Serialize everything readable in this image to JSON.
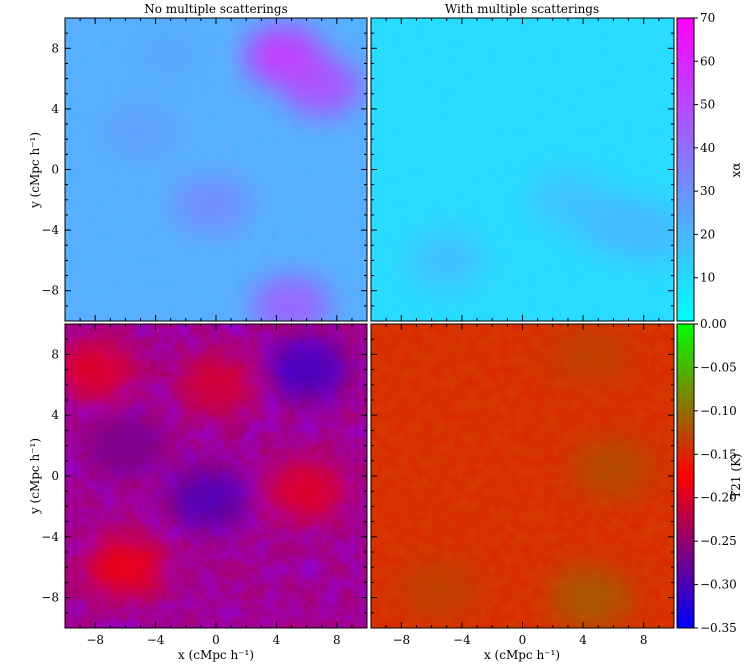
{
  "panel_titles": [
    "No multiple scatterings",
    "With multiple scatterings"
  ],
  "axis_labels": {
    "x": "x (cMpc h⁻¹)",
    "y": "y (cMpc h⁻¹)"
  },
  "chart_data": [
    {
      "type": "heatmap",
      "title": "No multiple scatterings",
      "quantity": "x_alpha",
      "xlabel": "",
      "ylabel": "y (cMpc h⁻¹)",
      "xlim": [
        -10,
        10
      ],
      "ylim": [
        -10,
        10
      ],
      "xticks": [
        -8,
        -4,
        0,
        4,
        8
      ],
      "yticks": [
        -8,
        -4,
        0,
        4,
        8
      ],
      "vmin": 0,
      "vmax": 70,
      "colormap": [
        "#00ffff",
        "#ff00ff"
      ],
      "features": [
        {
          "x": 4.5,
          "y": 7.5,
          "value": 58
        },
        {
          "x": 7.0,
          "y": 5.5,
          "value": 50
        },
        {
          "x": 5.0,
          "y": -9.0,
          "value": 45
        },
        {
          "x": -0.3,
          "y": -2.3,
          "value": 32
        },
        {
          "x": -5.0,
          "y": 2.5,
          "value": 26
        },
        {
          "x": -3.0,
          "y": 7.5,
          "value": 24
        }
      ],
      "background_value": 22
    },
    {
      "type": "heatmap",
      "title": "With multiple scatterings",
      "quantity": "x_alpha",
      "xlabel": "",
      "ylabel": "",
      "xlim": [
        -10,
        10
      ],
      "ylim": [
        -10,
        10
      ],
      "xticks": [
        -8,
        -4,
        0,
        4,
        8
      ],
      "yticks": [
        -8,
        -4,
        0,
        4,
        8
      ],
      "vmin": 0,
      "vmax": 70,
      "colormap": [
        "#00ffff",
        "#ff00ff"
      ],
      "features": [
        {
          "x": 6.0,
          "y": -3.5,
          "value": 20
        },
        {
          "x": 8.5,
          "y": -4.2,
          "value": 20
        },
        {
          "x": -5.0,
          "y": -6.0,
          "value": 18
        },
        {
          "x": 3.0,
          "y": -2.0,
          "value": 17
        }
      ],
      "background_value": 10
    },
    {
      "type": "heatmap",
      "title": "",
      "quantity": "T_21",
      "xlabel": "x (cMpc h⁻¹)",
      "ylabel": "y (cMpc h⁻¹)",
      "xlim": [
        -10,
        10
      ],
      "ylim": [
        -10,
        10
      ],
      "xticks": [
        -8,
        -4,
        0,
        4,
        8
      ],
      "yticks": [
        -8,
        -4,
        0,
        4,
        8
      ],
      "vmin": -0.35,
      "vmax": 0.0,
      "colormap": [
        "#0000ff",
        "#ff0000",
        "#00ff00"
      ],
      "features": [
        {
          "x": -6.0,
          "y": -6.0,
          "value": -0.18
        },
        {
          "x": 6.0,
          "y": -1.0,
          "value": -0.19
        },
        {
          "x": -8.0,
          "y": 7.0,
          "value": -0.19
        },
        {
          "x": 0.0,
          "y": 6.0,
          "value": -0.2
        },
        {
          "x": 6.0,
          "y": 7.0,
          "value": -0.31
        },
        {
          "x": -0.5,
          "y": -1.5,
          "value": -0.3
        },
        {
          "x": -6.0,
          "y": 2.0,
          "value": -0.27
        }
      ],
      "background_value": -0.24
    },
    {
      "type": "heatmap",
      "title": "",
      "quantity": "T_21",
      "xlabel": "x (cMpc h⁻¹)",
      "ylabel": "",
      "xlim": [
        -10,
        10
      ],
      "ylim": [
        -10,
        10
      ],
      "xticks": [
        -8,
        -4,
        0,
        4,
        8
      ],
      "yticks": [
        -8,
        -4,
        0,
        4,
        8
      ],
      "vmin": -0.35,
      "vmax": 0.0,
      "colormap": [
        "#0000ff",
        "#ff0000",
        "#00ff00"
      ],
      "features": [
        {
          "x": 4.5,
          "y": -8.0,
          "value": -0.11
        },
        {
          "x": 6.0,
          "y": 0.5,
          "value": -0.12
        },
        {
          "x": 4.5,
          "y": 8.0,
          "value": -0.13
        },
        {
          "x": -5.5,
          "y": -7.5,
          "value": -0.13
        }
      ],
      "background_value": -0.15
    }
  ],
  "colorbars": [
    {
      "label": "xα",
      "ticks": [
        "10",
        "20",
        "30",
        "40",
        "50",
        "60",
        "70"
      ],
      "tick_values": [
        10,
        20,
        30,
        40,
        50,
        60,
        70
      ],
      "vmin": 0,
      "vmax": 70,
      "colors": [
        "#00ffff",
        "#ff00ff"
      ]
    },
    {
      "label": "T21 (K)",
      "ticks": [
        "0.00",
        "−0.05",
        "−0.10",
        "−0.15",
        "−0.20",
        "−0.25",
        "−0.30",
        "−0.35"
      ],
      "tick_values": [
        0.0,
        -0.05,
        -0.1,
        -0.15,
        -0.2,
        -0.25,
        -0.3,
        -0.35
      ],
      "vmin": -0.35,
      "vmax": 0.0,
      "colors": [
        "#0000ff",
        "#ff0000",
        "#00ff00"
      ]
    }
  ],
  "tick_labels": [
    "−8",
    "−4",
    "0",
    "4",
    "8"
  ]
}
